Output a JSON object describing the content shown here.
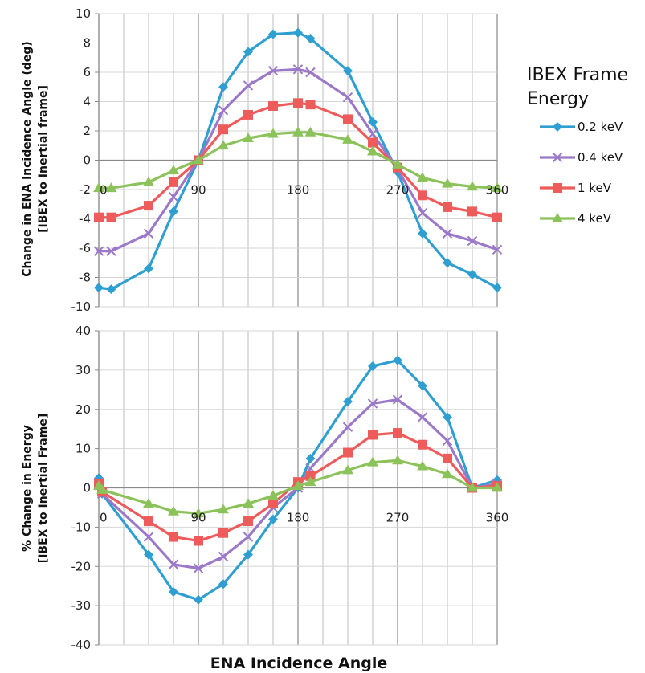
{
  "chart_data": [
    {
      "type": "line",
      "ylabel": [
        "Change in ENA Incidence Angle (deg)",
        "[IBEX to Inertial frame]"
      ],
      "ylim": [
        -10,
        10
      ],
      "yticks": [
        -10,
        -8,
        -6,
        -4,
        -2,
        0,
        2,
        4,
        6,
        8,
        10
      ],
      "xticks": [
        0,
        90,
        180,
        270,
        360
      ],
      "xlim": [
        0,
        360
      ],
      "x": [
        0,
        11.25,
        45,
        67.5,
        90,
        112.5,
        135,
        157.5,
        180,
        191.25,
        225,
        247.5,
        270,
        292.5,
        315,
        337.5,
        360
      ],
      "series": [
        {
          "name": "0.2 keV",
          "values": [
            -8.7,
            -8.8,
            -7.4,
            -3.5,
            0,
            5.0,
            7.4,
            8.6,
            8.7,
            8.3,
            6.1,
            2.6,
            -0.8,
            -5.0,
            -7.0,
            -7.8,
            -8.7
          ]
        },
        {
          "name": "0.4 keV",
          "values": [
            -6.2,
            -6.2,
            -5.0,
            -2.5,
            0,
            3.4,
            5.1,
            6.1,
            6.2,
            6.0,
            4.3,
            1.8,
            -0.6,
            -3.6,
            -5.0,
            -5.5,
            -6.1
          ]
        },
        {
          "name": "1 keV",
          "values": [
            -3.9,
            -3.9,
            -3.1,
            -1.5,
            0,
            2.1,
            3.1,
            3.7,
            3.9,
            3.8,
            2.8,
            1.2,
            -0.5,
            -2.4,
            -3.2,
            -3.5,
            -3.9
          ]
        },
        {
          "name": "4 keV",
          "values": [
            -1.9,
            -1.9,
            -1.5,
            -0.7,
            0,
            1.0,
            1.5,
            1.8,
            1.9,
            1.9,
            1.4,
            0.6,
            -0.3,
            -1.2,
            -1.6,
            -1.8,
            -1.9
          ]
        }
      ],
      "grid": true
    },
    {
      "type": "line",
      "ylabel": [
        "% Change in Energy",
        "[IBEX to Inertial Frame]"
      ],
      "xlabel": "ENA Incidence Angle",
      "ylim": [
        -40,
        40
      ],
      "yticks": [
        -40,
        -30,
        -20,
        -10,
        0,
        10,
        20,
        30,
        40
      ],
      "xticks": [
        0,
        90,
        180,
        270,
        360
      ],
      "xlim": [
        0,
        360
      ],
      "x": [
        0,
        3,
        45,
        67.5,
        90,
        112.5,
        135,
        157.5,
        180,
        191.25,
        225,
        247.5,
        270,
        292.5,
        315,
        337.5,
        360
      ],
      "series": [
        {
          "name": "0.2 keV",
          "values": [
            2.5,
            -1.5,
            -17,
            -26.5,
            -28.5,
            -24.5,
            -17,
            -8,
            0,
            7.5,
            22,
            31,
            32.5,
            26,
            18,
            0,
            2
          ]
        },
        {
          "name": "0.4 keV",
          "values": [
            1.5,
            -1.5,
            -12.5,
            -19.5,
            -20.5,
            -17.5,
            -12.5,
            -5,
            0,
            5,
            15.5,
            21.5,
            22.5,
            18,
            12,
            0,
            1
          ]
        },
        {
          "name": "1 keV",
          "values": [
            1,
            -1,
            -8.5,
            -12.5,
            -13.5,
            -11.5,
            -8.5,
            -4,
            1.5,
            3,
            9,
            13.5,
            14,
            11,
            7.5,
            0,
            0.5
          ]
        },
        {
          "name": "4 keV",
          "values": [
            0.5,
            -0.5,
            -4,
            -6,
            -6.5,
            -5.5,
            -4,
            -2,
            0.5,
            1.5,
            4.5,
            6.5,
            7,
            5.5,
            3.5,
            0,
            0
          ]
        }
      ],
      "grid": true
    }
  ],
  "legend": {
    "title": [
      "IBEX Frame",
      "Energy"
    ],
    "items": [
      {
        "label": "0.2 keV",
        "color": "#2e9fd0",
        "marker": "diamond"
      },
      {
        "label": "0.4 keV",
        "color": "#9b78c8",
        "marker": "x"
      },
      {
        "label": "1 keV",
        "color": "#ee5b5b",
        "marker": "square"
      },
      {
        "label": "4 keV",
        "color": "#8bc25a",
        "marker": "triangle"
      }
    ]
  }
}
